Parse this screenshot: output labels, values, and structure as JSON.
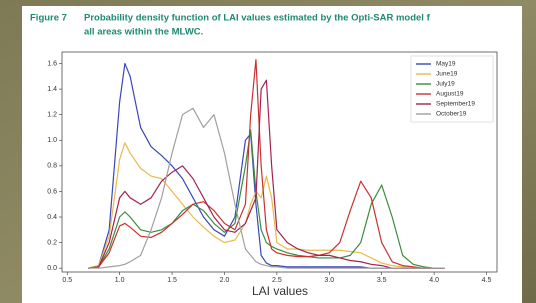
{
  "chart_data": {
    "type": "line",
    "figure_label": "Figure 7",
    "title": "Probability density function of LAI values estimated by the Opti-SAR model f",
    "subtitle": "all areas within the MLWC.",
    "x_label": "LAI values",
    "x": [
      0.7,
      0.8,
      0.9,
      1.0,
      1.05,
      1.1,
      1.2,
      1.3,
      1.4,
      1.5,
      1.6,
      1.7,
      1.8,
      1.9,
      2.0,
      2.1,
      2.2,
      2.25,
      2.3,
      2.35,
      2.4,
      2.45,
      2.5,
      2.6,
      2.7,
      2.8,
      2.9,
      3.0,
      3.1,
      3.2,
      3.3,
      3.4,
      3.5,
      3.6,
      3.7,
      3.8,
      3.9,
      4.0,
      4.1
    ],
    "series": [
      {
        "name": "May19",
        "color": "#3a47b8",
        "values": [
          0,
          0.02,
          0.3,
          1.3,
          1.6,
          1.5,
          1.1,
          0.95,
          0.88,
          0.8,
          0.7,
          0.55,
          0.4,
          0.3,
          0.25,
          0.4,
          1.0,
          1.05,
          0.5,
          0.1,
          0.04,
          0.02,
          0.02,
          0.01,
          0.01,
          0.01,
          0.01,
          0.01,
          0.01,
          0.01,
          0.01,
          0,
          0,
          0,
          0,
          0,
          0,
          0,
          0
        ]
      },
      {
        "name": "June19",
        "color": "#e6bb4e",
        "values": [
          0,
          0.02,
          0.25,
          0.85,
          0.98,
          0.9,
          0.78,
          0.72,
          0.7,
          0.6,
          0.5,
          0.4,
          0.32,
          0.25,
          0.2,
          0.22,
          0.35,
          0.5,
          0.6,
          0.55,
          0.72,
          0.55,
          0.2,
          0.15,
          0.15,
          0.14,
          0.14,
          0.14,
          0.14,
          0.13,
          0.12,
          0.08,
          0.04,
          0.02,
          0.01,
          0,
          0,
          0,
          0
        ]
      },
      {
        "name": "July19",
        "color": "#3c8c3c",
        "values": [
          0,
          0.01,
          0.15,
          0.4,
          0.44,
          0.4,
          0.3,
          0.28,
          0.3,
          0.35,
          0.45,
          0.5,
          0.45,
          0.35,
          0.28,
          0.35,
          0.8,
          1.08,
          0.6,
          0.3,
          0.2,
          0.17,
          0.15,
          0.12,
          0.1,
          0.09,
          0.08,
          0.08,
          0.08,
          0.1,
          0.2,
          0.5,
          0.65,
          0.4,
          0.1,
          0.03,
          0.01,
          0,
          0
        ]
      },
      {
        "name": "August19",
        "color": "#c8322e",
        "values": [
          0,
          0.01,
          0.12,
          0.33,
          0.35,
          0.32,
          0.25,
          0.24,
          0.28,
          0.35,
          0.42,
          0.5,
          0.52,
          0.45,
          0.35,
          0.3,
          0.5,
          1.2,
          1.63,
          0.8,
          0.3,
          0.15,
          0.12,
          0.1,
          0.09,
          0.09,
          0.1,
          0.12,
          0.2,
          0.45,
          0.68,
          0.55,
          0.2,
          0.05,
          0.02,
          0.01,
          0,
          0,
          0
        ]
      },
      {
        "name": "September19",
        "color": "#a3224f",
        "values": [
          0,
          0.01,
          0.2,
          0.55,
          0.6,
          0.55,
          0.5,
          0.55,
          0.68,
          0.75,
          0.8,
          0.7,
          0.55,
          0.4,
          0.3,
          0.28,
          0.35,
          0.45,
          0.55,
          1.4,
          1.47,
          0.8,
          0.3,
          0.2,
          0.15,
          0.12,
          0.1,
          0.1,
          0.08,
          0.06,
          0.05,
          0.03,
          0.02,
          0,
          0,
          0,
          0,
          0,
          0
        ]
      },
      {
        "name": "October19",
        "color": "#a0a0a0",
        "values": [
          0,
          0,
          0.01,
          0.02,
          0.03,
          0.05,
          0.1,
          0.3,
          0.55,
          0.9,
          1.2,
          1.25,
          1.1,
          1.2,
          0.9,
          0.5,
          0.15,
          0.1,
          0.05,
          0.03,
          0.02,
          0.01,
          0.01,
          0,
          0,
          0,
          0,
          0,
          0,
          0,
          0,
          0,
          0,
          0,
          0,
          0,
          0,
          0,
          0
        ]
      }
    ],
    "xlim": [
      0.45,
      4.6
    ],
    "ylim": [
      -0.03,
      1.69
    ],
    "xticks": [
      0.5,
      {
        "value": 1.0,
        "label": "1.0"
      },
      1.5,
      {
        "value": 2.0,
        "label": "2.0"
      },
      2.5,
      {
        "value": 3.0,
        "label": "3.0"
      },
      3.5,
      {
        "value": 4.0,
        "label": "4.0"
      },
      4.5
    ],
    "yticks": [
      {
        "value": 0.0,
        "label": "0.0"
      },
      0.2,
      0.4,
      0.6,
      0.8,
      {
        "value": 1.0,
        "label": "1.0"
      },
      1.2,
      1.4,
      1.6
    ],
    "legend": "upper right",
    "grid": false
  }
}
